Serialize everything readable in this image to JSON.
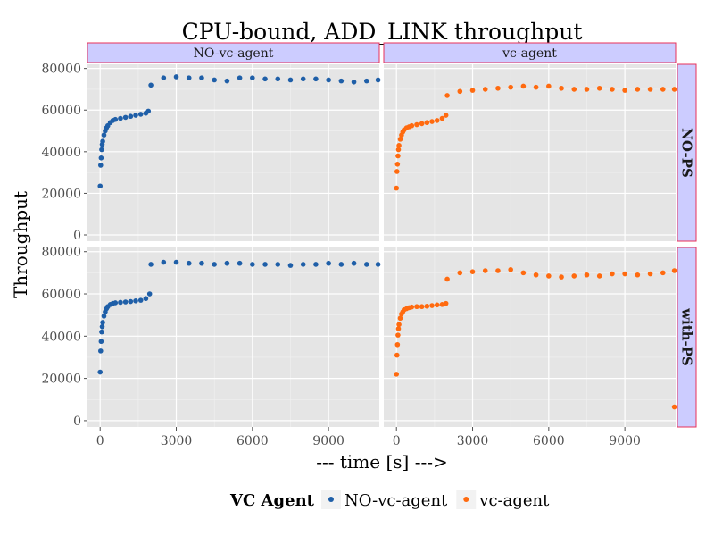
{
  "chart_data": {
    "type": "scatter",
    "title": "CPU-bound, ADD_LINK throughput",
    "xlabel": "--- time [s] --->",
    "ylabel": "Throughput",
    "xlim": [
      -500,
      11000
    ],
    "ylim": [
      -3000,
      82000
    ],
    "xticks": [
      {
        "value": 0,
        "label": "0"
      },
      {
        "value": 3000,
        "label": "3000"
      },
      {
        "value": 6000,
        "label": "6000"
      },
      {
        "value": 9000,
        "label": "9000"
      }
    ],
    "yticks": [
      {
        "value": 0,
        "label": "0"
      },
      {
        "value": 20000,
        "label": "20000"
      },
      {
        "value": 40000,
        "label": "40000"
      },
      {
        "value": 60000,
        "label": "60000"
      },
      {
        "value": 80000,
        "label": "80000"
      }
    ],
    "columns": [
      "NO-vc-agent",
      "vc-agent"
    ],
    "rows": [
      "NO-PS",
      "with-PS"
    ],
    "legend": {
      "title": "VC Agent",
      "position": "bottom",
      "entries": [
        {
          "label": "NO-vc-agent",
          "color": "#1f5fa8"
        },
        {
          "label": "vc-agent",
          "color": "#ff6a0f"
        }
      ]
    },
    "colors": {
      "panel_bg": "#e5e5e5",
      "grid": "#ffffff",
      "strip_fill": "#ccccff",
      "strip_border": "#e8305a"
    },
    "grid": true,
    "panels": [
      {
        "row": "NO-PS",
        "column": "NO-vc-agent",
        "series": "NO-vc-agent",
        "points": [
          [
            0,
            23500
          ],
          [
            20,
            33500
          ],
          [
            40,
            37000
          ],
          [
            60,
            41000
          ],
          [
            80,
            43500
          ],
          [
            100,
            45000
          ],
          [
            150,
            48000
          ],
          [
            200,
            50000
          ],
          [
            250,
            51500
          ],
          [
            300,
            52500
          ],
          [
            400,
            54000
          ],
          [
            500,
            55000
          ],
          [
            600,
            55500
          ],
          [
            800,
            56000
          ],
          [
            1000,
            56500
          ],
          [
            1200,
            57000
          ],
          [
            1400,
            57500
          ],
          [
            1600,
            58000
          ],
          [
            1800,
            58500
          ],
          [
            1900,
            59500
          ],
          [
            2000,
            72000
          ],
          [
            2500,
            75500
          ],
          [
            3000,
            76000
          ],
          [
            3500,
            75500
          ],
          [
            4000,
            75500
          ],
          [
            4500,
            74500
          ],
          [
            5000,
            74000
          ],
          [
            5500,
            75500
          ],
          [
            6000,
            75500
          ],
          [
            6500,
            75000
          ],
          [
            7000,
            75000
          ],
          [
            7500,
            74500
          ],
          [
            8000,
            75000
          ],
          [
            8500,
            75000
          ],
          [
            9000,
            74500
          ],
          [
            9500,
            74000
          ],
          [
            10000,
            73500
          ],
          [
            10500,
            74000
          ],
          [
            10950,
            74500
          ]
        ]
      },
      {
        "row": "NO-PS",
        "column": "vc-agent",
        "series": "vc-agent",
        "points": [
          [
            0,
            22500
          ],
          [
            20,
            30500
          ],
          [
            40,
            34000
          ],
          [
            60,
            38000
          ],
          [
            80,
            41000
          ],
          [
            100,
            43000
          ],
          [
            150,
            46000
          ],
          [
            200,
            48000
          ],
          [
            250,
            49500
          ],
          [
            300,
            50500
          ],
          [
            400,
            51500
          ],
          [
            500,
            52000
          ],
          [
            600,
            52500
          ],
          [
            800,
            53000
          ],
          [
            1000,
            53500
          ],
          [
            1200,
            54000
          ],
          [
            1400,
            54500
          ],
          [
            1600,
            55000
          ],
          [
            1800,
            56000
          ],
          [
            1950,
            57500
          ],
          [
            2000,
            67000
          ],
          [
            2500,
            69000
          ],
          [
            3000,
            69500
          ],
          [
            3500,
            70000
          ],
          [
            4000,
            70500
          ],
          [
            4500,
            71000
          ],
          [
            5000,
            71500
          ],
          [
            5500,
            71000
          ],
          [
            6000,
            71500
          ],
          [
            6500,
            70500
          ],
          [
            7000,
            70000
          ],
          [
            7500,
            70000
          ],
          [
            8000,
            70500
          ],
          [
            8500,
            70000
          ],
          [
            9000,
            69500
          ],
          [
            9500,
            70000
          ],
          [
            10000,
            70000
          ],
          [
            10500,
            70000
          ],
          [
            10950,
            70000
          ]
        ]
      },
      {
        "row": "with-PS",
        "column": "NO-vc-agent",
        "series": "NO-vc-agent",
        "points": [
          [
            0,
            23000
          ],
          [
            20,
            33000
          ],
          [
            40,
            37500
          ],
          [
            60,
            42000
          ],
          [
            80,
            44500
          ],
          [
            100,
            46500
          ],
          [
            150,
            49500
          ],
          [
            200,
            51500
          ],
          [
            250,
            53000
          ],
          [
            300,
            54000
          ],
          [
            400,
            55000
          ],
          [
            500,
            55500
          ],
          [
            600,
            55800
          ],
          [
            800,
            56000
          ],
          [
            1000,
            56200
          ],
          [
            1200,
            56400
          ],
          [
            1400,
            56700
          ],
          [
            1600,
            57000
          ],
          [
            1800,
            57800
          ],
          [
            1950,
            60000
          ],
          [
            2000,
            74000
          ],
          [
            2500,
            75000
          ],
          [
            3000,
            75000
          ],
          [
            3500,
            74500
          ],
          [
            4000,
            74500
          ],
          [
            4500,
            74000
          ],
          [
            5000,
            74500
          ],
          [
            5500,
            74500
          ],
          [
            6000,
            74000
          ],
          [
            6500,
            74000
          ],
          [
            7000,
            74000
          ],
          [
            7500,
            73500
          ],
          [
            8000,
            74000
          ],
          [
            8500,
            74000
          ],
          [
            9000,
            74500
          ],
          [
            9500,
            74000
          ],
          [
            10000,
            74500
          ],
          [
            10500,
            74000
          ],
          [
            10950,
            74000
          ]
        ]
      },
      {
        "row": "with-PS",
        "column": "vc-agent",
        "series": "vc-agent",
        "points": [
          [
            0,
            22000
          ],
          [
            20,
            31000
          ],
          [
            40,
            36000
          ],
          [
            60,
            40500
          ],
          [
            80,
            43500
          ],
          [
            100,
            45500
          ],
          [
            150,
            48500
          ],
          [
            200,
            50500
          ],
          [
            250,
            51500
          ],
          [
            300,
            52500
          ],
          [
            400,
            53000
          ],
          [
            500,
            53500
          ],
          [
            600,
            53800
          ],
          [
            800,
            54000
          ],
          [
            1000,
            54000
          ],
          [
            1200,
            54200
          ],
          [
            1400,
            54500
          ],
          [
            1600,
            54800
          ],
          [
            1800,
            55000
          ],
          [
            1950,
            55500
          ],
          [
            2000,
            67000
          ],
          [
            2500,
            70000
          ],
          [
            3000,
            70500
          ],
          [
            3500,
            71000
          ],
          [
            4000,
            71000
          ],
          [
            4500,
            71500
          ],
          [
            5000,
            70000
          ],
          [
            5500,
            69000
          ],
          [
            6000,
            68500
          ],
          [
            6500,
            68000
          ],
          [
            7000,
            68500
          ],
          [
            7500,
            69000
          ],
          [
            8000,
            68500
          ],
          [
            8500,
            69500
          ],
          [
            9000,
            69500
          ],
          [
            9500,
            69000
          ],
          [
            10000,
            69500
          ],
          [
            10500,
            70000
          ],
          [
            10950,
            71000
          ],
          [
            10950,
            6500
          ]
        ]
      }
    ]
  }
}
